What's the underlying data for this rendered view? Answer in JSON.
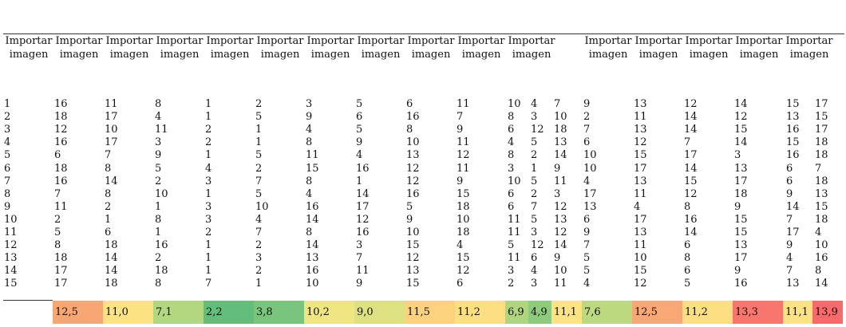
{
  "header": {
    "line1": "Importar",
    "line2": "imagen",
    "columns": 16
  },
  "row_labels": [
    "1",
    "2",
    "3",
    "4",
    "5",
    "6",
    "7",
    "8",
    "9",
    "10",
    "11",
    "12",
    "13",
    "14",
    "15"
  ],
  "columns": [
    {
      "values": [
        "16",
        "18",
        "12",
        "16",
        "6",
        "18",
        "16",
        "7",
        "11",
        "2",
        "5",
        "8",
        "18",
        "17",
        "17"
      ]
    },
    {
      "values": [
        "11",
        "17",
        "10",
        "17",
        "7",
        "8",
        "14",
        "8",
        "2",
        "1",
        "6",
        "18",
        "14",
        "14",
        "18"
      ]
    },
    {
      "values": [
        "8",
        "4",
        "11",
        "3",
        "9",
        "5",
        "2",
        "10",
        "1",
        "8",
        "1",
        "16",
        "2",
        "18",
        "8"
      ]
    },
    {
      "values": [
        "1",
        "1",
        "2",
        "2",
        "1",
        "4",
        "3",
        "1",
        "3",
        "3",
        "2",
        "1",
        "1",
        "1",
        "7"
      ]
    },
    {
      "values": [
        "2",
        "5",
        "1",
        "1",
        "5",
        "2",
        "7",
        "5",
        "10",
        "4",
        "7",
        "2",
        "3",
        "2",
        "1"
      ]
    },
    {
      "values": [
        "3",
        "9",
        "4",
        "8",
        "11",
        "15",
        "8",
        "4",
        "16",
        "14",
        "8",
        "14",
        "13",
        "16",
        "10"
      ]
    },
    {
      "values": [
        "5",
        "6",
        "5",
        "9",
        "4",
        "16",
        "1",
        "14",
        "17",
        "12",
        "16",
        "3",
        "7",
        "11",
        "9"
      ]
    },
    {
      "values": [
        "6",
        "16",
        "8",
        "10",
        "13",
        "12",
        "12",
        "16",
        "5",
        "9",
        "10",
        "15",
        "12",
        "13",
        "15"
      ]
    },
    {
      "values": [
        "11",
        "7",
        "9",
        "11",
        "12",
        "11",
        "9",
        "15",
        "18",
        "10",
        "18",
        "4",
        "15",
        "12",
        "6"
      ]
    },
    {
      "values": [
        "10",
        "8",
        "6",
        "4",
        "8",
        "3",
        "10",
        "6",
        "6",
        "11",
        "11",
        "5",
        "11",
        "3",
        "2"
      ]
    },
    {
      "values": [
        "4",
        "3",
        "12",
        "5",
        "2",
        "1",
        "5",
        "2",
        "7",
        "5",
        "3",
        "12",
        "6",
        "4",
        "3"
      ]
    },
    {
      "values": [
        "7",
        "10",
        "18",
        "13",
        "14",
        "9",
        "11",
        "3",
        "12",
        "13",
        "12",
        "14",
        "9",
        "10",
        "11"
      ]
    },
    {
      "values": [
        "9",
        "2",
        "7",
        "6",
        "10",
        "10",
        "4",
        "17",
        "13",
        "6",
        "9",
        "7",
        "5",
        "5",
        "4"
      ]
    },
    {
      "values": [
        "13",
        "11",
        "13",
        "12",
        "15",
        "17",
        "13",
        "11",
        "4",
        "17",
        "13",
        "11",
        "10",
        "15",
        "12"
      ]
    },
    {
      "values": [
        "12",
        "14",
        "14",
        "7",
        "17",
        "14",
        "15",
        "12",
        "8",
        "16",
        "14",
        "6",
        "8",
        "6",
        "5"
      ]
    },
    {
      "values": [
        "14",
        "12",
        "15",
        "14",
        "3",
        "13",
        "17",
        "18",
        "9",
        "15",
        "15",
        "13",
        "17",
        "9",
        "16"
      ]
    },
    {
      "values": [
        "15",
        "13",
        "16",
        "15",
        "16",
        "6",
        "6",
        "9",
        "14",
        "7",
        "17",
        "9",
        "4",
        "7",
        "13"
      ]
    },
    {
      "values": [
        "17",
        "15",
        "17",
        "18",
        "18",
        "7",
        "18",
        "13",
        "15",
        "18",
        "4",
        "10",
        "16",
        "8",
        "14"
      ]
    }
  ],
  "averages": [
    {
      "value": "12,5",
      "color": "#f8a774"
    },
    {
      "value": "11,0",
      "color": "#fde283"
    },
    {
      "value": "7,1",
      "color": "#b3d77f"
    },
    {
      "value": "2,2",
      "color": "#63be7b"
    },
    {
      "value": "3,8",
      "color": "#7ac57d"
    },
    {
      "value": "10,2",
      "color": "#f0e583"
    },
    {
      "value": "9,0",
      "color": "#dde182"
    },
    {
      "value": "11,5",
      "color": "#fdd27f"
    },
    {
      "value": "11,2",
      "color": "#fddf83"
    },
    {
      "value": "6,9",
      "color": "#b0d57f"
    },
    {
      "value": "4,9",
      "color": "#8ecb7e"
    },
    {
      "value": "11,1",
      "color": "#fde383"
    },
    {
      "value": "7,6",
      "color": "#bdd980"
    },
    {
      "value": "12,5",
      "color": "#f9a875"
    },
    {
      "value": "11,2",
      "color": "#fddf83"
    },
    {
      "value": "13,3",
      "color": "#f8766d"
    },
    {
      "value": "11,1",
      "color": "#fde283"
    },
    {
      "value": "13,9",
      "color": "#f8696b"
    }
  ]
}
